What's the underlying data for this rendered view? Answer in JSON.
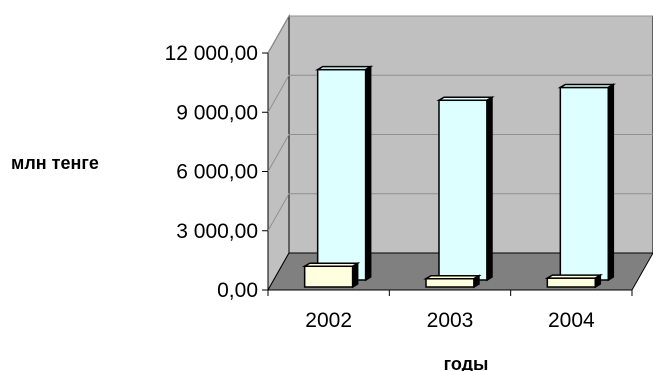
{
  "chart_data": {
    "type": "bar",
    "title": "",
    "xlabel": "годы",
    "ylabel": "млн тенге",
    "categories": [
      "2002",
      "2003",
      "2004"
    ],
    "series": [
      {
        "values": [
          10650,
          9100,
          9750
        ],
        "color": "#ddffff"
      },
      {
        "values": [
          1050,
          420,
          450
        ],
        "color": "#ffffe0"
      }
    ],
    "ylim": [
      0,
      12000
    ],
    "yticks": [
      0,
      3000,
      6000,
      9000,
      12000
    ],
    "ytick_labels": [
      "0,00",
      "3 000,00",
      "6 000,00",
      "9 000,00",
      "12 000,00"
    ],
    "grid": true,
    "style": {
      "back_wall_color": "#c0c0c0",
      "floor_color": "#808080",
      "gridline_color": "#909090",
      "edge_color": "#000000"
    }
  }
}
